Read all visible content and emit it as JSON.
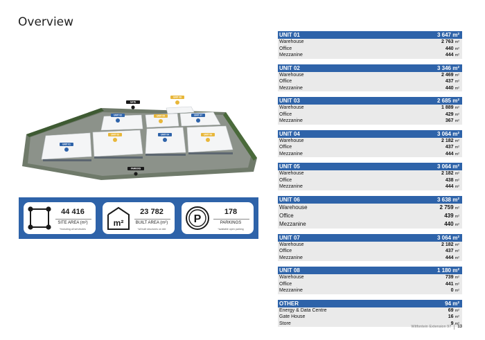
{
  "page": {
    "title": "Overview"
  },
  "site_plan": {
    "gate_label": "GATE",
    "parking_label": "PARKING",
    "unit_labels": [
      "UNIT 01",
      "UNIT 02",
      "UNIT 03",
      "UNIT 04",
      "UNIT 05",
      "UNIT 06",
      "UNIT 07",
      "UNIT 08"
    ],
    "colors": {
      "marker_blue": "#2e63a9",
      "marker_yellow": "#e8b73a"
    }
  },
  "stats": [
    {
      "icon": "site-area-icon",
      "value": "44 416",
      "label": "SITE AREA (m²)",
      "note": "*Including all servitudes"
    },
    {
      "icon": "m2-building-icon",
      "icon_text": "m²",
      "value": "23 782",
      "label": "BUILT AREA (m²)",
      "note": "*all built structures on site"
    },
    {
      "icon": "parking-icon",
      "icon_text": "P",
      "value": "178",
      "label": "PARKINGS",
      "note": "*available open parking"
    }
  ],
  "units": [
    {
      "name": "UNIT 01",
      "total": "3 647",
      "unit": "m²",
      "rows": [
        {
          "label": "Warehouse",
          "value": "2 763"
        },
        {
          "label": "Office",
          "value": "440"
        },
        {
          "label": "Mezzanine",
          "value": "444"
        }
      ]
    },
    {
      "name": "UNIT 02",
      "total": "3 346",
      "unit": "m²",
      "rows": [
        {
          "label": "Warehouse",
          "value": "2 469"
        },
        {
          "label": "Office",
          "value": "437"
        },
        {
          "label": "Mezzanine",
          "value": "440"
        }
      ]
    },
    {
      "name": "UNIT 03",
      "total": "2 685",
      "unit": "m²",
      "rows": [
        {
          "label": "Warehouse",
          "value": "1 889"
        },
        {
          "label": "Office",
          "value": "429"
        },
        {
          "label": "Mezzanine",
          "value": "367"
        }
      ]
    },
    {
      "name": "UNIT 04",
      "total": "3 064",
      "unit": "m²",
      "rows": [
        {
          "label": "Warehouse",
          "value": "2 182"
        },
        {
          "label": "Office",
          "value": "437"
        },
        {
          "label": "Mezzanine",
          "value": "444"
        }
      ]
    },
    {
      "name": "UNIT 05",
      "total": "3 064",
      "unit": "m²",
      "rows": [
        {
          "label": "Warehouse",
          "value": "2 182"
        },
        {
          "label": "Office",
          "value": "438"
        },
        {
          "label": "Mezzanine",
          "value": "444"
        }
      ]
    },
    {
      "name": "UNIT 06",
      "total": "3 638",
      "unit": "m²",
      "rows": [
        {
          "label": "Warehouse",
          "value": "2 759"
        },
        {
          "label": "Office",
          "value": "439"
        },
        {
          "label": "Mezzanine",
          "value": "440"
        }
      ]
    },
    {
      "name": "UNIT 07",
      "total": "3 064",
      "unit": "m²",
      "rows": [
        {
          "label": "Warehouse",
          "value": "2 182"
        },
        {
          "label": "Office",
          "value": "437"
        },
        {
          "label": "Mezzanine",
          "value": "444"
        }
      ]
    },
    {
      "name": "UNIT 08",
      "total": "1 180",
      "unit": "m²",
      "rows": [
        {
          "label": "Warehouse",
          "value": "739"
        },
        {
          "label": "Office",
          "value": "441"
        },
        {
          "label": "Mezzanine",
          "value": "0"
        }
      ]
    },
    {
      "name": "OTHER",
      "total": "94",
      "unit": "m²",
      "rows": [
        {
          "label": "Energy & Data Centre",
          "value": "69"
        },
        {
          "label": "Gate House",
          "value": "16"
        },
        {
          "label": "Store",
          "value": "9"
        }
      ]
    }
  ],
  "footer": {
    "doc_name": "Witfontein Extension 97",
    "page_number": "13"
  }
}
